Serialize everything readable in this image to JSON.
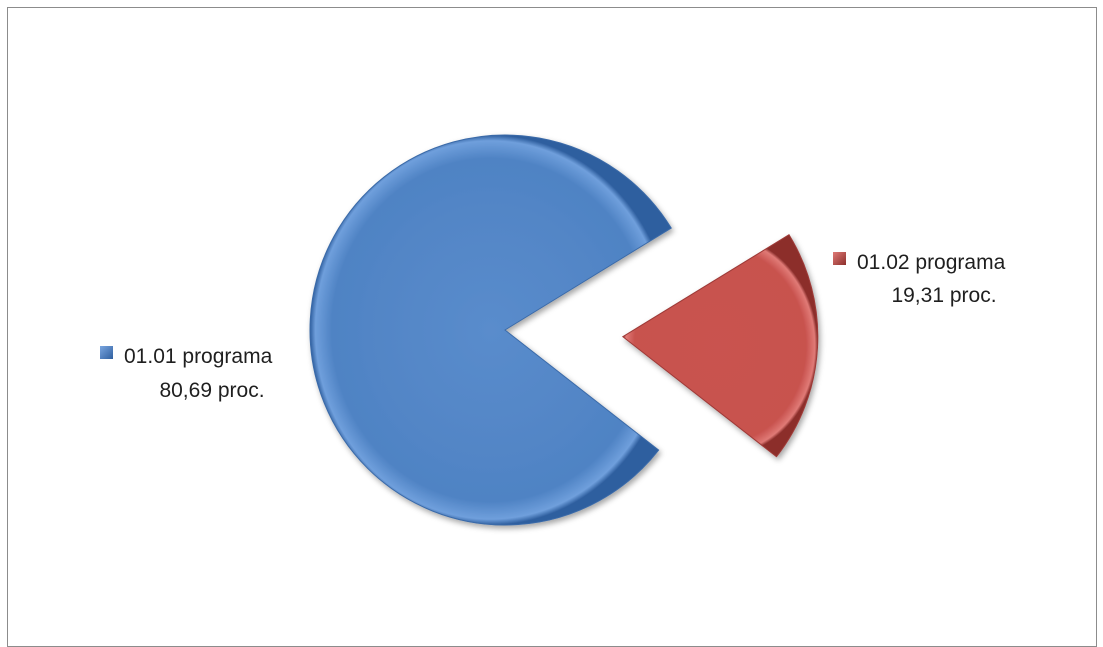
{
  "chart_data": {
    "type": "pie",
    "title": "",
    "exploded": true,
    "legend": "none",
    "slices": [
      {
        "label": "01.01 programa",
        "value": 80.69,
        "value_text": "80,69 proc.",
        "color": "#4f81bd"
      },
      {
        "label": "01.02 programa",
        "value": 19.31,
        "value_text": "19,31 proc.",
        "color": "#c0504d"
      }
    ]
  }
}
